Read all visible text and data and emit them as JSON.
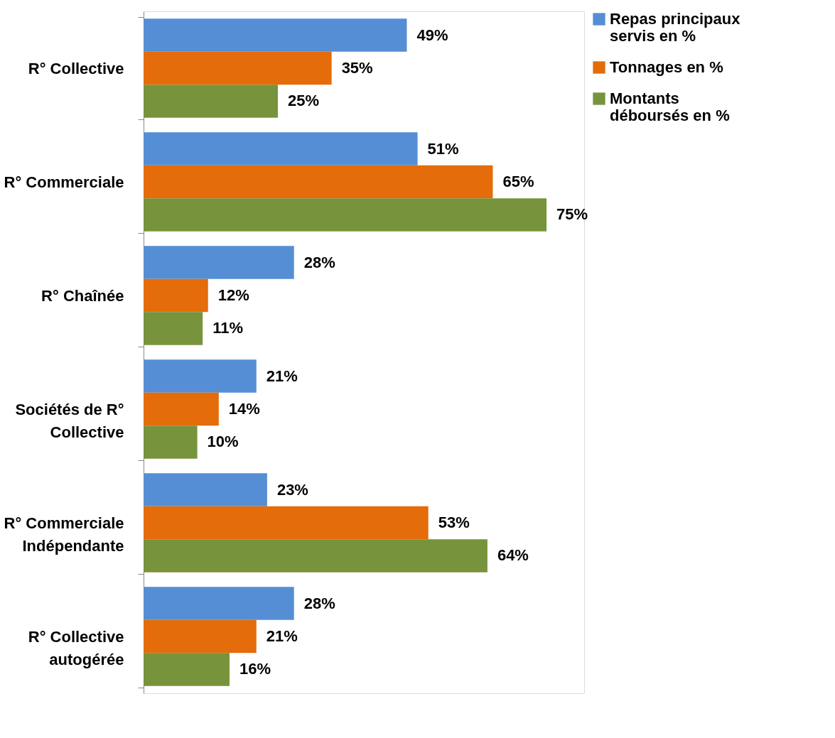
{
  "chart_data": {
    "type": "bar",
    "orientation": "horizontal",
    "categories": [
      "R° Collective",
      "R° Commerciale",
      "R° Chaînée",
      "Sociétés de R°\nCollective",
      "R° Commerciale\nIndépendante",
      "R° Collective\nautogérée"
    ],
    "series": [
      {
        "name": "Repas principaux\nservis en %",
        "color": "#558ed5",
        "values": [
          49,
          51,
          28,
          21,
          23,
          28
        ],
        "value_labels": [
          "49%",
          "51%",
          "28%",
          "21%",
          "23%",
          "28%"
        ]
      },
      {
        "name": "Tonnages en %",
        "color": "#e46c0a",
        "values": [
          35,
          65,
          12,
          14,
          53,
          21
        ],
        "value_labels": [
          "35%",
          "65%",
          "12%",
          "14%",
          "53%",
          "21%"
        ]
      },
      {
        "name": "Montants\ndéboursés en %",
        "color": "#77933c",
        "values": [
          25,
          75,
          11,
          10,
          64,
          16
        ],
        "value_labels": [
          "25%",
          "75%",
          "11%",
          "10%",
          "64%",
          "16%"
        ]
      }
    ],
    "xlim": [
      0,
      82
    ],
    "tick_labels": "y",
    "grid": false,
    "legend": "right"
  }
}
